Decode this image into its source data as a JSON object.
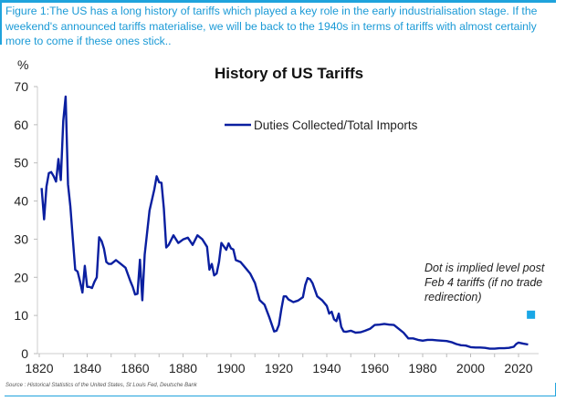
{
  "figure": {
    "caption": "Figure 1:The US has a long history of tariffs which played a key role in the early industrialisation stage. If the weekend's announced tariffs materialise, we will be back to the 1940s in terms of tariffs with almost certainly more to come if these ones stick..",
    "source": "Source : Historical Statistics of the United States, St Louis Fed, Deutsche Bank",
    "accent_color": "#1fa3dc"
  },
  "chart_data": {
    "type": "line",
    "title": "History of US Tariffs",
    "ylabel": "%",
    "xlabel": "",
    "ylim": [
      0,
      70
    ],
    "xlim": [
      1820,
      2025
    ],
    "yticks": [
      0,
      10,
      20,
      30,
      40,
      50,
      60,
      70
    ],
    "xticks": [
      1820,
      1840,
      1860,
      1880,
      1900,
      1920,
      1940,
      1960,
      1980,
      2000,
      2020
    ],
    "grid": false,
    "legend_position": "top-center",
    "series": [
      {
        "name": "Duties Collected/Total Imports",
        "color": "#0a1fa0",
        "x": [
          1821,
          1822,
          1823,
          1824,
          1825,
          1826,
          1827,
          1828,
          1829,
          1830,
          1831,
          1832,
          1833,
          1834,
          1835,
          1836,
          1837,
          1838,
          1839,
          1840,
          1841,
          1842,
          1843,
          1844,
          1845,
          1846,
          1847,
          1848,
          1849,
          1850,
          1852,
          1854,
          1856,
          1858,
          1859,
          1860,
          1861,
          1862,
          1863,
          1864,
          1866,
          1868,
          1869,
          1870,
          1871,
          1872,
          1873,
          1874,
          1876,
          1878,
          1880,
          1882,
          1884,
          1886,
          1888,
          1890,
          1891,
          1892,
          1893,
          1894,
          1895,
          1896,
          1898,
          1899,
          1900,
          1901,
          1902,
          1904,
          1906,
          1908,
          1910,
          1912,
          1914,
          1916,
          1918,
          1919,
          1920,
          1921,
          1922,
          1923,
          1924,
          1926,
          1928,
          1930,
          1931,
          1932,
          1933,
          1934,
          1936,
          1938,
          1940,
          1941,
          1942,
          1943,
          1944,
          1945,
          1946,
          1947,
          1948,
          1950,
          1952,
          1954,
          1956,
          1958,
          1960,
          1962,
          1964,
          1966,
          1968,
          1970,
          1972,
          1974,
          1976,
          1978,
          1980,
          1982,
          1984,
          1986,
          1988,
          1990,
          1992,
          1994,
          1996,
          1998,
          2000,
          2002,
          2004,
          2006,
          2008,
          2010,
          2012,
          2014,
          2016,
          2018,
          2019,
          2020,
          2022,
          2024
        ],
        "values": [
          43.4,
          35.2,
          43.8,
          47.3,
          47.6,
          46.5,
          45.1,
          51.0,
          45.5,
          61.0,
          67.4,
          44.4,
          38.5,
          30.0,
          22.0,
          21.5,
          19.0,
          16.0,
          23.0,
          17.5,
          17.5,
          17.2,
          18.8,
          20.0,
          30.5,
          29.5,
          27.5,
          24.0,
          23.5,
          23.5,
          24.5,
          23.5,
          22.5,
          19.0,
          17.5,
          15.5,
          15.7,
          24.6,
          14.0,
          26.0,
          37.5,
          43.0,
          46.5,
          44.9,
          44.8,
          38.0,
          27.8,
          28.5,
          31.0,
          29.0,
          29.9,
          30.4,
          28.5,
          31.0,
          30.0,
          28.0,
          22.0,
          23.5,
          20.5,
          21.0,
          24.0,
          29.0,
          27.2,
          28.9,
          27.6,
          27.3,
          24.5,
          24.0,
          22.5,
          21.0,
          18.5,
          14.0,
          12.8,
          9.5,
          5.8,
          6.0,
          7.5,
          11.5,
          15.0,
          15.0,
          14.2,
          13.5,
          13.9,
          14.8,
          18.0,
          19.8,
          19.5,
          18.5,
          15.0,
          14.0,
          12.5,
          10.5,
          11.0,
          9.0,
          8.5,
          10.5,
          7.0,
          5.8,
          5.7,
          6.0,
          5.5,
          5.6,
          6.0,
          6.5,
          7.5,
          7.6,
          7.8,
          7.6,
          7.5,
          6.5,
          5.5,
          4.0,
          4.0,
          3.6,
          3.4,
          3.6,
          3.6,
          3.5,
          3.4,
          3.3,
          3.0,
          2.5,
          2.2,
          2.1,
          1.7,
          1.6,
          1.6,
          1.5,
          1.3,
          1.3,
          1.4,
          1.4,
          1.5,
          1.8,
          2.5,
          2.9,
          2.6,
          2.4
        ]
      }
    ],
    "highlight_point": {
      "label": "Implied level post Feb 4 tariffs",
      "x": 2025,
      "value": 10.2,
      "color": "#1aa7e6"
    },
    "annotation": {
      "lines": [
        "Dot is implied level post",
        "Feb 4 tariffs (if no trade",
        "redirection)"
      ]
    }
  }
}
